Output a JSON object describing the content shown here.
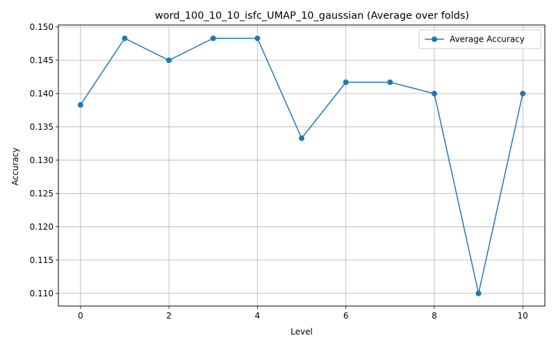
{
  "chart_data": {
    "type": "line",
    "title": "word_100_10_10_isfc_UMAP_10_gaussian (Average over folds)",
    "xlabel": "Level",
    "ylabel": "Accuracy",
    "x": [
      0,
      1,
      2,
      3,
      4,
      5,
      6,
      7,
      8,
      9,
      10
    ],
    "series": [
      {
        "name": "Average Accuracy",
        "values": [
          0.1383,
          0.1483,
          0.145,
          0.1483,
          0.1483,
          0.1333,
          0.1417,
          0.1417,
          0.14,
          0.11,
          0.14
        ],
        "color": "#1f77b4",
        "marker": "circle"
      }
    ],
    "xlim": [
      -0.5,
      10.5
    ],
    "ylim": [
      0.1081,
      0.1503
    ],
    "xticks": [
      "0",
      "2",
      "4",
      "6",
      "8",
      "10"
    ],
    "yticks": [
      "0.110",
      "0.115",
      "0.120",
      "0.125",
      "0.130",
      "0.135",
      "0.140",
      "0.145",
      "0.150"
    ],
    "grid": true,
    "legend": {
      "position": "top-right"
    }
  }
}
